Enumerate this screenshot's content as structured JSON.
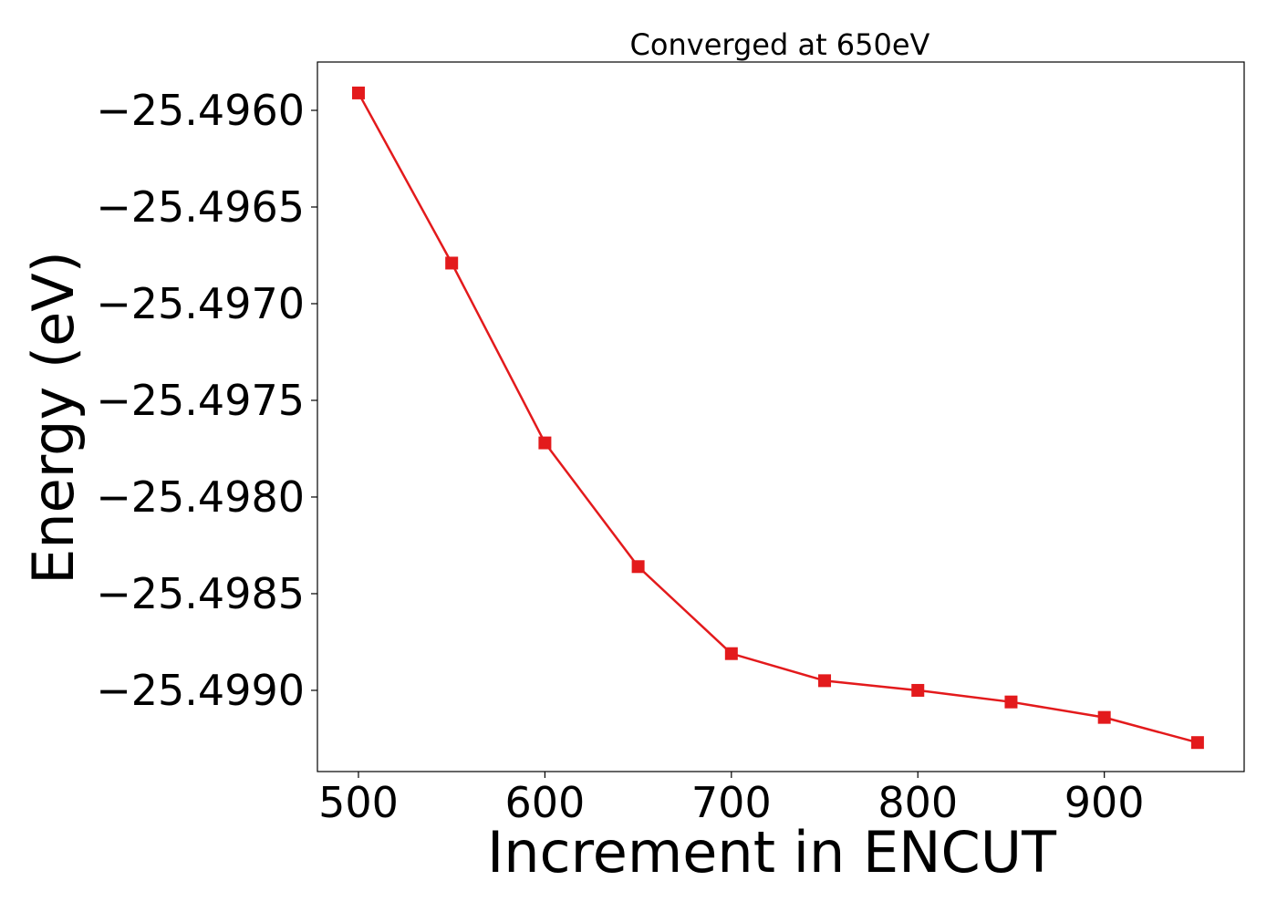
{
  "chart_data": {
    "type": "line",
    "title": "Converged at 650eV",
    "xlabel": "Increment in ENCUT",
    "ylabel": "Energy (eV)",
    "xlim": [
      478,
      975
    ],
    "ylim": [
      -25.49942,
      -25.49575
    ],
    "xticks": [
      500,
      600,
      700,
      800,
      900
    ],
    "xtick_labels": [
      "500",
      "600",
      "700",
      "800",
      "900"
    ],
    "yticks": [
      -25.496,
      -25.4965,
      -25.497,
      -25.4975,
      -25.498,
      -25.4985,
      -25.499
    ],
    "ytick_labels": [
      "−25.4960",
      "−25.4965",
      "−25.4970",
      "−25.4975",
      "−25.4980",
      "−25.4985",
      "−25.4990"
    ],
    "grid": false,
    "series": [
      {
        "color": "#e31a1c",
        "marker": "square",
        "x": [
          500,
          550,
          600,
          650,
          700,
          750,
          800,
          850,
          900,
          950
        ],
        "y": [
          -25.49591,
          -25.49679,
          -25.49772,
          -25.49836,
          -25.49881,
          -25.49895,
          -25.499,
          -25.49906,
          -25.49914,
          -25.49927
        ]
      }
    ]
  }
}
